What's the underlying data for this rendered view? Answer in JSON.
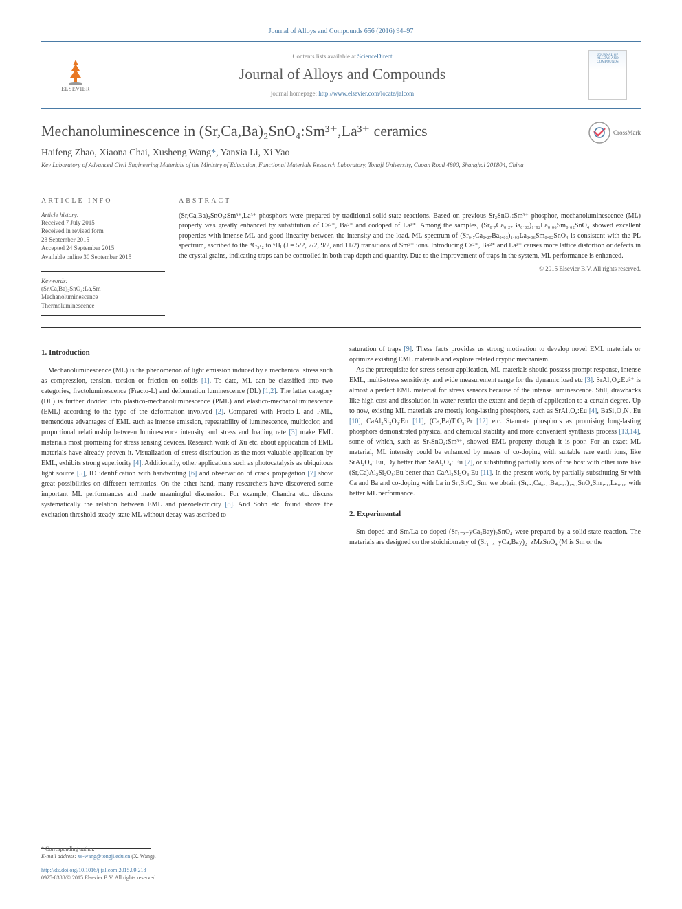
{
  "topline": "Journal of Alloys and Compounds 656 (2016) 94–97",
  "header": {
    "contents_prefix": "Contents lists available at ",
    "contents_link": "ScienceDirect",
    "journal_name": "Journal of Alloys and Compounds",
    "homepage_prefix": "journal homepage: ",
    "homepage_url": "http://www.elsevier.com/locate/jalcom",
    "publisher": "ELSEVIER",
    "cover_title": "JOURNAL OF ALLOYS AND COMPOUNDS"
  },
  "article": {
    "title": "Mechanoluminescence in (Sr,Ca,Ba)₂SnO₄:Sm³⁺,La³⁺ ceramics",
    "crossmark": "CrossMark",
    "authors_text": "Haifeng Zhao, Xiaona Chai, Xusheng Wang",
    "authors_corr": "*",
    "authors_tail": ", Yanxia Li, Xi Yao",
    "affiliation": "Key Laboratory of Advanced Civil Engineering Materials of the Ministry of Education, Functional Materials Research Laboratory, Tongji University, Caoan Road 4800, Shanghai 201804, China"
  },
  "info": {
    "heading": "ARTICLE INFO",
    "history_label": "Article history:",
    "history": "Received 7 July 2015\nReceived in revised form\n23 September 2015\nAccepted 24 September 2015\nAvailable online 30 September 2015",
    "keywords_label": "Keywords:",
    "keywords": "(Sr,Ca,Ba)₂SnO₄:La,Sm\nMechanoluminescence\nThermoluminescence"
  },
  "abstract": {
    "heading": "ABSTRACT",
    "text": "(Sr,Ca,Ba)₂SnO₄:Sm³⁺,La³⁺ phosphors were prepared by traditional solid-state reactions. Based on previous Sr₂SnO₄:Sm³⁺ phosphor, mechanoluminescence (ML) property was greatly enhanced by substitution of Ca²⁺, Ba²⁺ and codoped of La³⁺. Among the samples, (Sr₀.₇Ca₀.₂₇Ba₀.₀₃)₁.₉₂La₀.₀₆Sm₀.₀₂SnO₄ showed excellent properties with intense ML and good linearity between the intensity and the load. ML spectrum of (Sr₀.₇Ca₀.₂₇Ba₀.₀₃)₁.₉₂La₀.₀₆Sm₀.₀₂SnO₄ is consistent with the PL spectrum, ascribed to the ⁴G₅/₂ to ⁶Hⱼ (J = 5/2, 7/2, 9/2, and 11/2) transitions of Sm³⁺ ions. Introducing Ca²⁺, Ba²⁺ and La³⁺ causes more lattice distortion or defects in the crystal grains, indicating traps can be controlled in both trap depth and quantity. Due to the improvement of traps in the system, ML performance is enhanced.",
    "copyright": "© 2015 Elsevier B.V. All rights reserved."
  },
  "body": {
    "sec1_head": "1. Introduction",
    "sec1_p1": "Mechanoluminescence (ML) is the phenomenon of light emission induced by a mechanical stress such as compression, tension, torsion or friction on solids [1]. To date, ML can be classified into two categories, fractoluminescence (Fracto-L) and deformation luminescence (DL) [1,2]. The latter category (DL) is further divided into plastico-mechanoluminescence (PML) and elastico-mechanoluminescence (EML) according to the type of the deformation involved [2]. Compared with Fracto-L and PML, tremendous advantages of EML such as intense emission, repeatability of luminescence, multicolor, and proportional relationship between luminescence intensity and stress and loading rate [3] make EML materials most promising for stress sensing devices. Research work of Xu etc. about application of EML materials have already proven it. Visualization of stress distribution as the most valuable application by EML, exhibits strong superiority [4]. Additionally, other applications such as photocatalysis as ubiquitous light source [5], ID identification with handwriting [6] and observation of crack propagation [7] show great possibilities on different territories. On the other hand, many researchers have discovered some important ML performances and made meaningful discussion. For example, Chandra etc. discuss systematically the relation between EML and piezoelectricity [8]. And Sohn etc. found above the excitation threshold steady-state ML without decay was ascribed to",
    "sec1_p2a": "saturation of traps [9]. These facts provides us strong motivation to develop novel EML materials or optimize existing EML materials and explore related cryptic mechanism.",
    "sec1_p2b": "As the prerequisite for stress sensor application, ML materials should possess prompt response, intense EML, multi-stress sensitivity, and wide measurement range for the dynamic load etc [3]. SrAl₂O₄:Eu²⁺ is almost a perfect EML material for stress sensors because of the intense luminescence. Still, drawbacks like high cost and dissolution in water restrict the extent and depth of application to a certain degree. Up to now, existing ML materials are mostly long-lasting phosphors, such as SrAl₂O₄:Eu [4], BaSi₂O₂N₂:Eu [10], CaAl₂Si₂O₈:Eu [11], (Ca,Ba)TiO₃:Pr [12] etc. Stannate phosphors as promising long-lasting phosphors demonstrated physical and chemical stability and more convenient synthesis process [13,14], some of which, such as Sr₂SnO₄:Sm³⁺, showed EML property though it is poor. For an exact ML material, ML intensity could be enhanced by means of co-doping with suitable rare earth ions, like SrAl₂O₄: Eu, Dy better than SrAl₂O₄: Eu [7], or substituting partially ions of the host with other ions like (Sr,Ca)Al₂Si₂O₈:Eu better than CaAl₂Si₂O₈:Eu [11]. In the present work, by partially substituting Sr with Ca and Ba and co-doping with La in Sr₂SnO₄:Sm, we obtain (Sr₀.₇Ca₀.₂₇Ba₀.₀₃)₁.₉₂SnO₄Sm₀.₀₂La₀.₀₆ with better ML performance.",
    "sec2_head": "2. Experimental",
    "sec2_p1": "Sm doped and Sm/La co-doped (Sr₁₋ₓ₋yCaₓBay)₂SnO₄ were prepared by a solid-state reaction. The materials are designed on the stoichiometry of (Sr₁₋ₓ₋yCaₓBay)₂₋zMzSnO₄ (M is Sm or the"
  },
  "footer": {
    "corr_label": "* Corresponding author.",
    "email_label": "E-mail address: ",
    "email": "xs-wang@tongji.edu.cn",
    "email_tail": " (X. Wang).",
    "doi": "http://dx.doi.org/10.1016/j.jallcom.2015.09.218",
    "issn": "0925-8388/© 2015 Elsevier B.V. All rights reserved."
  },
  "colors": {
    "link": "#4a7ba6",
    "rule": "#333333",
    "text": "#333333",
    "muted": "#555555"
  }
}
